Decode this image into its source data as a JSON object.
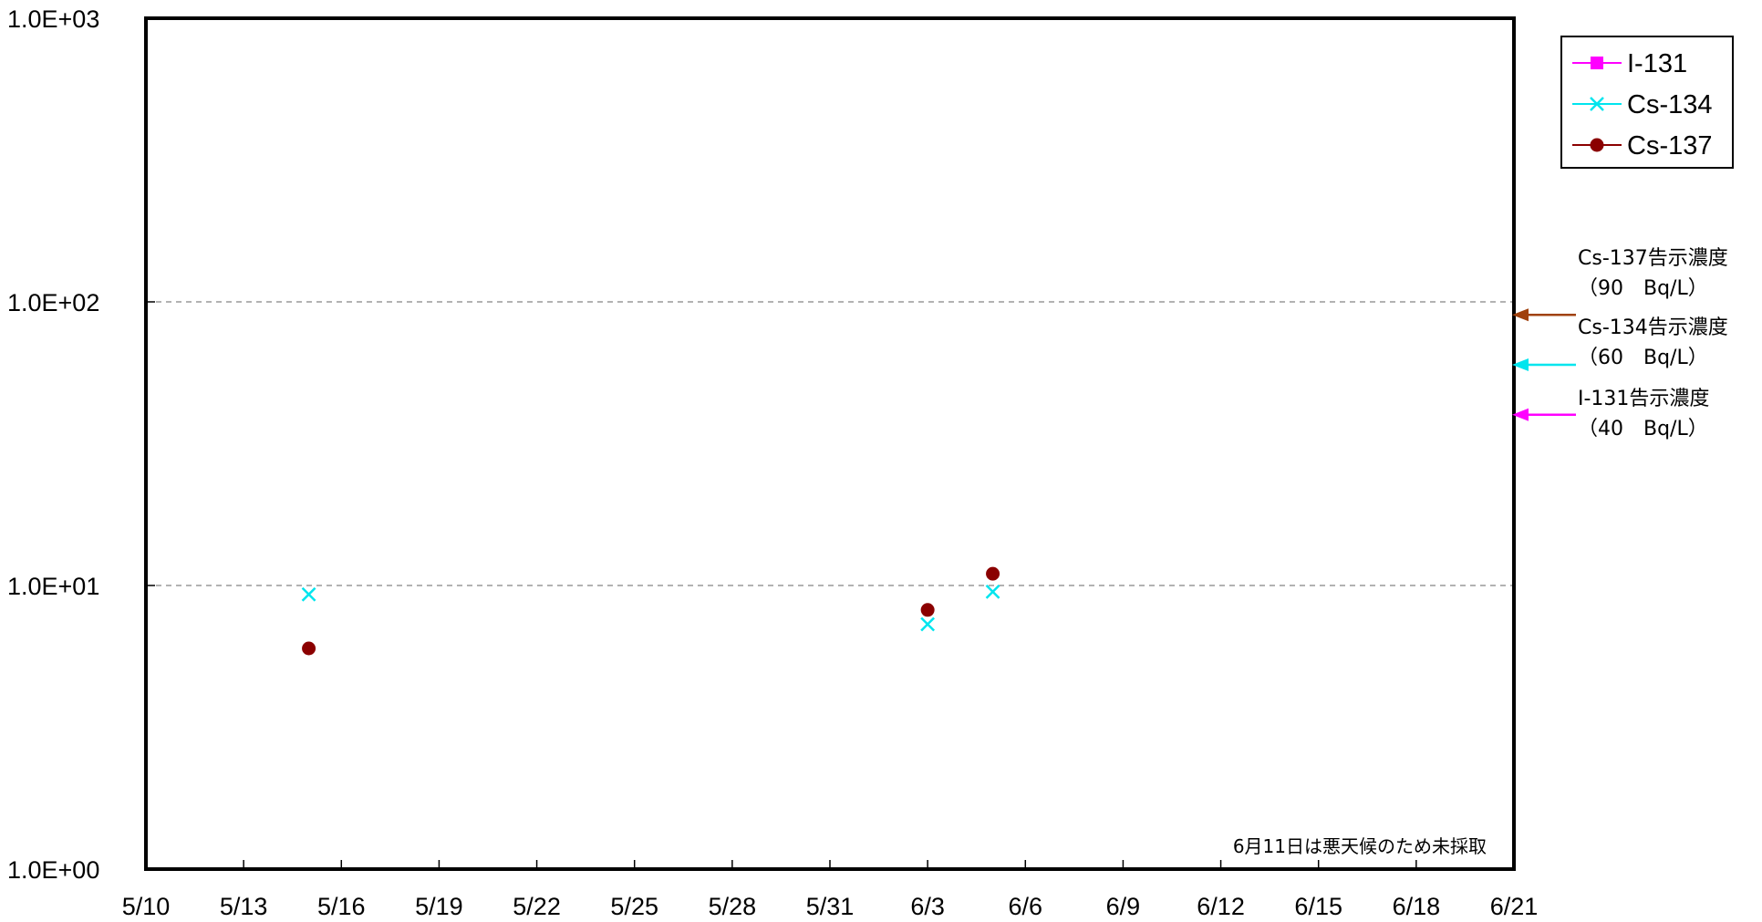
{
  "chart_data": {
    "type": "scatter",
    "title": "",
    "xlabel": "",
    "ylabel": "",
    "x_axis": {
      "kind": "date",
      "range": [
        "5/10",
        "6/21"
      ],
      "tick_labels": [
        "5/10",
        "5/13",
        "5/16",
        "5/19",
        "5/22",
        "5/25",
        "5/28",
        "5/31",
        "6/3",
        "6/6",
        "6/9",
        "6/12",
        "6/15",
        "6/18",
        "6/21"
      ]
    },
    "y_axis": {
      "scale": "log",
      "ylim": [
        1,
        1000
      ],
      "tick_labels": [
        "1.0E+00",
        "1.0E+01",
        "1.0E+02",
        "1.0E+03"
      ],
      "tick_values": [
        1,
        10,
        100,
        1000
      ]
    },
    "grid": {
      "horizontal_dashed_at": [
        10,
        100
      ]
    },
    "legend": {
      "placement": "top-right",
      "entries": [
        {
          "name": "I-131",
          "color": "#ff00ff",
          "marker": "square"
        },
        {
          "name": "Cs-134",
          "color": "#00e5ee",
          "marker": "x"
        },
        {
          "name": "Cs-137",
          "color": "#8b0000",
          "marker": "circle"
        }
      ]
    },
    "series": [
      {
        "name": "I-131",
        "color": "#ff00ff",
        "marker": "square",
        "points": []
      },
      {
        "name": "Cs-134",
        "color": "#00e5ee",
        "marker": "x",
        "points": [
          {
            "x": "5/15",
            "y": 9.3
          },
          {
            "x": "6/3",
            "y": 7.3
          },
          {
            "x": "6/5",
            "y": 9.5
          }
        ]
      },
      {
        "name": "Cs-137",
        "color": "#8b0000",
        "marker": "circle",
        "points": [
          {
            "x": "5/15",
            "y": 6.0
          },
          {
            "x": "6/3",
            "y": 8.2
          },
          {
            "x": "6/5",
            "y": 11.0
          }
        ]
      }
    ],
    "reference_levels": [
      {
        "label": "Cs-137告示濃度",
        "sublabel": "（90　Bq/L）",
        "value": 90,
        "color": "#a0410d"
      },
      {
        "label": "Cs-134告示濃度",
        "sublabel": "（60　Bq/L）",
        "value": 60,
        "color": "#00e5ee"
      },
      {
        "label": "I-131告示濃度",
        "sublabel": "（40　Bq/L）",
        "value": 40,
        "color": "#ff00ff"
      }
    ],
    "annotation": "6月11日は悪天候のため未採取"
  }
}
